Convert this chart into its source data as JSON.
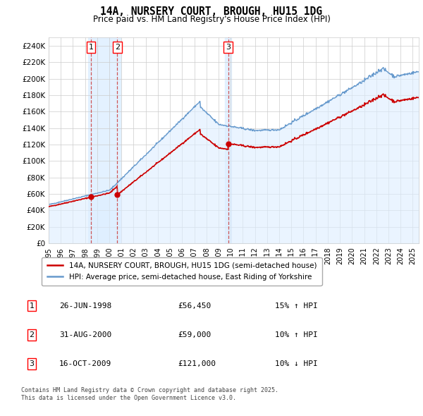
{
  "title_line1": "14A, NURSERY COURT, BROUGH, HU15 1DG",
  "title_line2": "Price paid vs. HM Land Registry's House Price Index (HPI)",
  "xlim_years": [
    1995,
    2025.5
  ],
  "ylim": [
    0,
    250000
  ],
  "yticks": [
    0,
    20000,
    40000,
    60000,
    80000,
    100000,
    120000,
    140000,
    160000,
    180000,
    200000,
    220000,
    240000
  ],
  "sale_dates_num": [
    1998.48,
    2000.66,
    2009.79
  ],
  "sale_prices": [
    56450,
    59000,
    121000
  ],
  "sale_labels": [
    "1",
    "2",
    "3"
  ],
  "sale_notes": [
    "26-JUN-1998",
    "31-AUG-2000",
    "16-OCT-2009"
  ],
  "sale_amounts": [
    "£56,450",
    "£59,000",
    "£121,000"
  ],
  "sale_hpi": [
    "15% ↑ HPI",
    "10% ↑ HPI",
    "10% ↓ HPI"
  ],
  "legend_property": "14A, NURSERY COURT, BROUGH, HU15 1DG (semi-detached house)",
  "legend_hpi": "HPI: Average price, semi-detached house, East Riding of Yorkshire",
  "property_line_color": "#cc0000",
  "hpi_line_color": "#6699cc",
  "hpi_fill_color": "#ddeeff",
  "vspan_color": "#ddeeff",
  "marker_color": "#cc0000",
  "grid_color": "#cccccc",
  "background_color": "#ffffff",
  "footnote1": "Contains HM Land Registry data © Crown copyright and database right 2025.",
  "footnote2": "This data is licensed under the Open Government Licence v3.0."
}
